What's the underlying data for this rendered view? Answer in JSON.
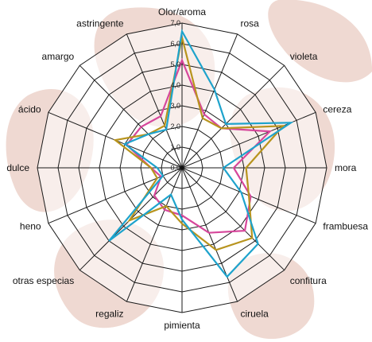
{
  "chart_data": {
    "type": "radar",
    "axes": [
      "Olor/aroma",
      "rosa",
      "violeta",
      "cereza",
      "mora",
      "frambuesa",
      "confitura",
      "ciruela",
      "pimienta",
      "regaliz",
      "otras especias",
      "heno",
      "dulce",
      "ácido",
      "amargo",
      "astringente"
    ],
    "tick_labels": [
      "0,0",
      "1,0",
      "2,0",
      "3,0",
      "4,0",
      "5,0",
      "6,0",
      "7,0"
    ],
    "rlim": [
      0,
      7
    ],
    "grid": true,
    "legend": "none",
    "series": [
      {
        "color": "#d6479b",
        "values": [
          5.2,
          2.8,
          2.7,
          4.6,
          2.5,
          3.6,
          4.3,
          3.4,
          2.3,
          2.2,
          1.9,
          1.1,
          1.5,
          2.9,
          2.8,
          2.7
        ]
      },
      {
        "color": "#b8941e",
        "values": [
          6.3,
          2.6,
          2.7,
          5.3,
          3.1,
          3.5,
          4.8,
          4.3,
          2.7,
          2.0,
          3.6,
          1.3,
          1.5,
          3.5,
          2.3,
          2.2
        ]
      },
      {
        "color": "#1ea3cc",
        "values": [
          6.6,
          4.1,
          3.0,
          5.7,
          2.0,
          3.1,
          5.2,
          5.7,
          2.5,
          1.4,
          5.0,
          1.0,
          1.2,
          3.0,
          2.3,
          2.0
        ]
      }
    ]
  },
  "background": {
    "blob_color": "#efd9d2"
  }
}
